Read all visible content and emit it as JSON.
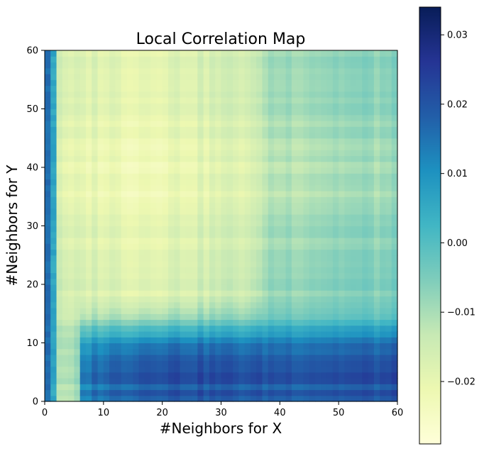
{
  "chart_data": {
    "type": "heatmap",
    "title": "Local Correlation Map",
    "xlabel": "#Neighbors for X",
    "ylabel": "#Neighbors for Y",
    "xlim": [
      0,
      60
    ],
    "ylim": [
      0,
      60
    ],
    "x_ticks": [
      0,
      10,
      20,
      30,
      40,
      50,
      60
    ],
    "y_ticks": [
      0,
      10,
      20,
      30,
      40,
      50,
      60
    ],
    "x_tick_labels": [
      "0",
      "10",
      "20",
      "30",
      "40",
      "50",
      "60"
    ],
    "y_tick_labels": [
      "0",
      "10",
      "20",
      "30",
      "40",
      "50",
      "60"
    ],
    "grid": false,
    "colormap": "YlGnBu",
    "colorbar": {
      "vmin": -0.029,
      "vmax": 0.034,
      "ticks": [
        -0.02,
        -0.01,
        0.0,
        0.01,
        0.02,
        0.03
      ],
      "tick_labels": [
        "−0.02",
        "−0.01",
        "0.00",
        "0.01",
        "0.02",
        "0.03"
      ],
      "colors": [
        "#ffffd9",
        "#edf8b1",
        "#c7e9b4",
        "#7fcdbb",
        "#41b6c4",
        "#1d91c0",
        "#225ea8",
        "#253494",
        "#081d58"
      ]
    },
    "grid_size": 60,
    "value_model": {
      "description": "approximate correlation values read from the heatmap",
      "x_col0": 0.016,
      "x_col1": 0.006,
      "y_profile": [
        [
          0,
          0.024
        ],
        [
          1,
          0.028
        ],
        [
          2,
          0.022
        ],
        [
          3,
          0.026
        ],
        [
          4,
          0.029
        ],
        [
          5,
          0.026
        ],
        [
          6,
          0.024
        ],
        [
          7,
          0.021
        ],
        [
          8,
          0.018
        ],
        [
          9,
          0.019
        ],
        [
          10,
          0.016
        ],
        [
          11,
          0.012
        ],
        [
          12,
          0.008
        ],
        [
          13,
          0.003
        ],
        [
          14,
          -0.002
        ],
        [
          15,
          -0.006
        ],
        [
          20,
          -0.009
        ],
        [
          25,
          -0.011
        ],
        [
          30,
          -0.013
        ],
        [
          35,
          -0.019
        ],
        [
          42,
          -0.017
        ],
        [
          50,
          -0.012
        ],
        [
          60,
          -0.009
        ]
      ],
      "x_profile_low": [
        [
          0,
          -0.012
        ],
        [
          3,
          -0.022
        ],
        [
          6,
          -0.016
        ],
        [
          8,
          -0.005
        ],
        [
          12,
          0.002
        ],
        [
          18,
          0.012
        ],
        [
          25,
          0.012
        ],
        [
          35,
          0.008
        ],
        [
          45,
          0.01
        ],
        [
          60,
          0.012
        ]
      ],
      "x_profile_high": [
        [
          0,
          0.0
        ],
        [
          3,
          -0.024
        ],
        [
          8,
          -0.022
        ],
        [
          15,
          -0.025
        ],
        [
          25,
          -0.021
        ],
        [
          36,
          -0.017
        ],
        [
          37,
          -0.008
        ],
        [
          50,
          -0.004
        ],
        [
          60,
          -0.004
        ]
      ]
    }
  }
}
